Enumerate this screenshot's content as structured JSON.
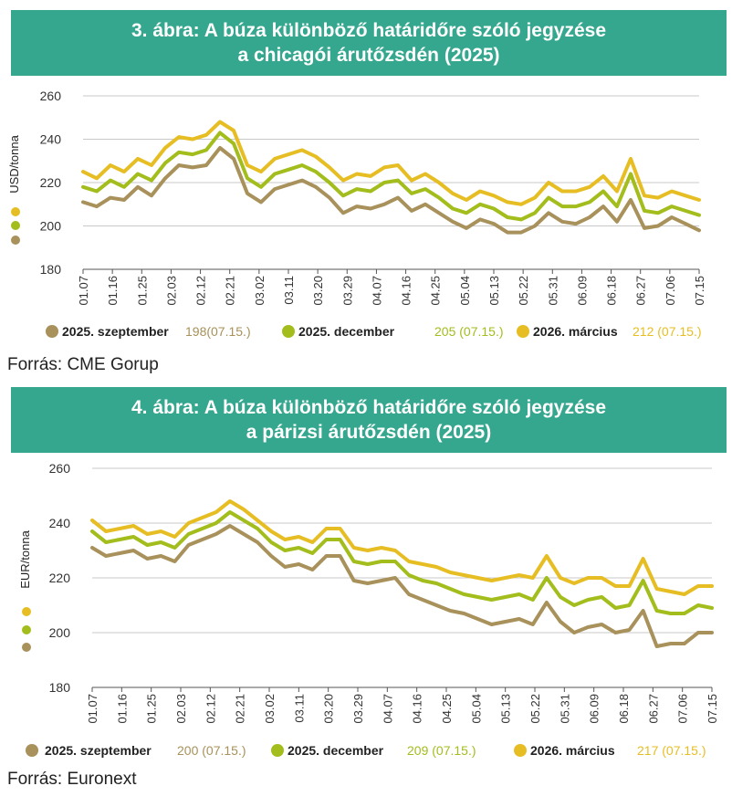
{
  "figures": [
    {
      "title_line1": "3. ábra: A búza különböző határidőre szóló jegyzése",
      "title_line2": "a chicagói árutőzsdén (2025)",
      "source": "Forrás: CME Gorup"
    },
    {
      "title_line1": "4. ábra: A búza különböző határidőre szóló jegyzése",
      "title_line2": "a párizsi árutőzsdén (2025)",
      "source": "Forrás: Euronext"
    }
  ],
  "chart_data": [
    {
      "type": "line",
      "ylabel": "USD/tonna",
      "ylim": [
        180,
        260
      ],
      "yticks": [
        180,
        200,
        220,
        240,
        260
      ],
      "grid": true,
      "legend_position": "bottom",
      "x_ticks": [
        "01.07",
        "01.16",
        "01.25",
        "02.03",
        "02.12",
        "02.21",
        "03.02",
        "03.11",
        "03.20",
        "03.29",
        "04.07",
        "04.16",
        "04.25",
        "05.04",
        "05.13",
        "05.22",
        "05.31",
        "06.09",
        "06.18",
        "06.27",
        "07.06",
        "07.15"
      ],
      "series": [
        {
          "name": "2025. szeptember",
          "value_label": "198(07.15.)",
          "color": "#a8915a",
          "values": [
            211,
            209,
            213,
            212,
            218,
            214,
            222,
            228,
            227,
            228,
            236,
            231,
            215,
            211,
            217,
            219,
            221,
            218,
            213,
            206,
            209,
            208,
            210,
            213,
            207,
            210,
            206,
            202,
            199,
            203,
            201,
            197,
            197,
            200,
            206,
            202,
            201,
            204,
            209,
            202,
            212,
            199,
            200,
            204,
            201,
            198
          ]
        },
        {
          "name": "2025. december",
          "value_label": "205 (07.15.)",
          "color": "#a2bd1c",
          "values": [
            218,
            216,
            221,
            218,
            224,
            221,
            229,
            234,
            233,
            235,
            243,
            238,
            222,
            218,
            224,
            226,
            228,
            225,
            220,
            214,
            217,
            216,
            220,
            221,
            215,
            217,
            213,
            208,
            206,
            210,
            208,
            204,
            203,
            206,
            213,
            209,
            209,
            211,
            216,
            209,
            224,
            207,
            206,
            209,
            207,
            205
          ]
        },
        {
          "name": "2026. március",
          "value_label": "212 (07.15.)",
          "color": "#e6be24",
          "values": [
            225,
            222,
            228,
            225,
            231,
            228,
            236,
            241,
            240,
            242,
            248,
            244,
            228,
            225,
            231,
            233,
            235,
            232,
            227,
            221,
            224,
            223,
            227,
            228,
            221,
            224,
            220,
            215,
            212,
            216,
            214,
            211,
            210,
            213,
            220,
            216,
            216,
            218,
            223,
            216,
            231,
            214,
            213,
            216,
            214,
            212
          ]
        }
      ]
    },
    {
      "type": "line",
      "ylabel": "EUR/tonna",
      "ylim": [
        180,
        260
      ],
      "yticks": [
        180,
        200,
        220,
        240,
        260
      ],
      "grid": true,
      "legend_position": "bottom",
      "x_ticks": [
        "01.07",
        "01.16",
        "01.25",
        "02.03",
        "02.12",
        "02.21",
        "03.02",
        "03.11",
        "03.20",
        "03.29",
        "04.07",
        "04.16",
        "04.25",
        "05.04",
        "05.13",
        "05.22",
        "05.31",
        "06.09",
        "06.18",
        "06.27",
        "07.06",
        "07.15"
      ],
      "series": [
        {
          "name": "2025. szeptember",
          "value_label": "200 (07.15.)",
          "color": "#a8915a",
          "values": [
            231,
            228,
            229,
            230,
            227,
            228,
            226,
            232,
            234,
            236,
            239,
            236,
            233,
            228,
            224,
            225,
            223,
            228,
            228,
            219,
            218,
            219,
            220,
            214,
            212,
            210,
            208,
            207,
            205,
            203,
            204,
            205,
            203,
            211,
            204,
            200,
            202,
            203,
            200,
            201,
            208,
            195,
            196,
            196,
            200,
            200
          ]
        },
        {
          "name": "2025. december",
          "value_label": "209 (07.15.)",
          "color": "#a2bd1c",
          "values": [
            237,
            233,
            234,
            235,
            232,
            233,
            231,
            236,
            238,
            240,
            244,
            241,
            238,
            233,
            230,
            231,
            229,
            234,
            234,
            226,
            225,
            226,
            226,
            221,
            219,
            218,
            216,
            214,
            213,
            212,
            213,
            214,
            212,
            220,
            213,
            210,
            212,
            213,
            209,
            210,
            219,
            208,
            207,
            207,
            210,
            209
          ]
        },
        {
          "name": "2026. március",
          "value_label": "217 (07.15.)",
          "color": "#e6be24",
          "values": [
            241,
            237,
            238,
            239,
            236,
            237,
            235,
            240,
            242,
            244,
            248,
            245,
            241,
            237,
            234,
            235,
            233,
            238,
            238,
            231,
            230,
            231,
            230,
            226,
            225,
            224,
            222,
            221,
            220,
            219,
            220,
            221,
            220,
            228,
            220,
            218,
            220,
            220,
            217,
            217,
            227,
            216,
            215,
            214,
            217,
            217
          ]
        }
      ]
    }
  ]
}
